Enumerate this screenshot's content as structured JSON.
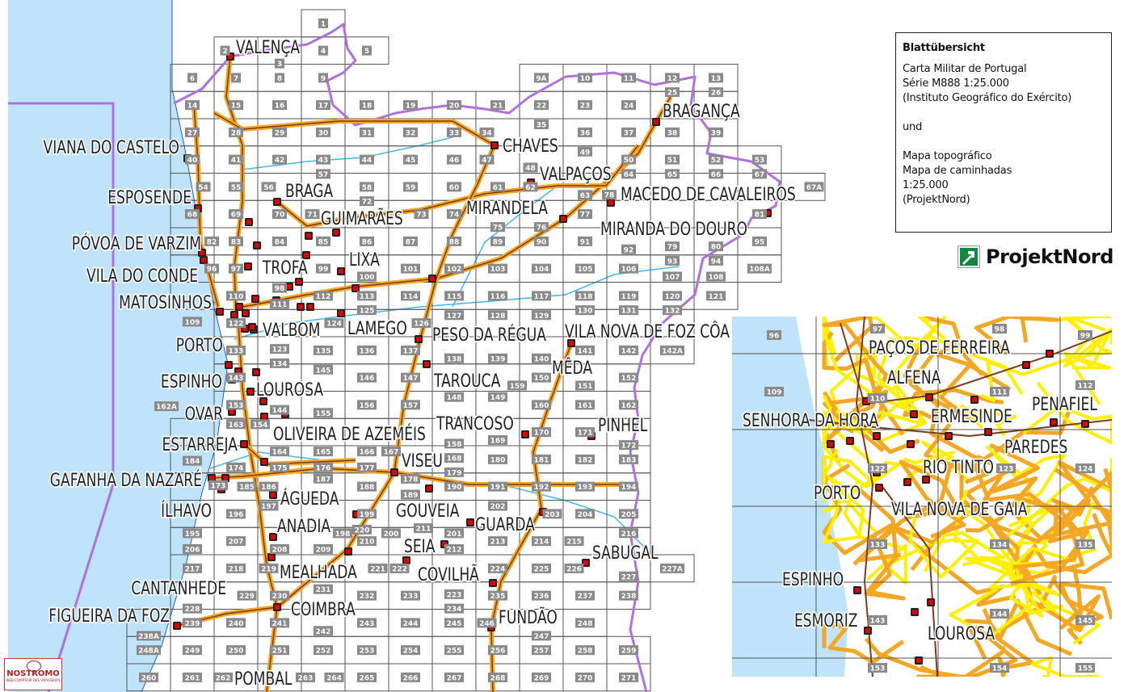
{
  "legend": {
    "title": "Blattübersicht",
    "lines_1": [
      "Carta Militar de Portugal",
      "Série M888 1:25.000",
      "(Instituto Geográfico do Exército)"
    ],
    "conjunction": "und",
    "lines_2": [
      "Mapa topográfico",
      "Mapa de caminhadas",
      "1:25.000",
      "(ProjektNord)"
    ]
  },
  "brand_logo": "ProjektNord",
  "corner_logo": {
    "name": "NOSTROMO",
    "tagline": "WEB-COMPTOIR DES VOYAGEURS"
  },
  "colors": {
    "sea": "#bfe3fb",
    "road_outer": "#f5a623",
    "road_inner": "#7a3b22",
    "local_road": "#ffef00",
    "border": "#b070e0",
    "river": "#3fb8ef",
    "tile_label_bg": "#8a8a8a",
    "grid": "#555555",
    "city_marker": "#e00000"
  },
  "sheet_rows": [
    [
      "1"
    ],
    [
      "2",
      "3",
      "4",
      "5"
    ],
    [
      "6",
      "7",
      "8",
      "9",
      null,
      null,
      null,
      null,
      "9A",
      "10",
      "11",
      "12",
      "13"
    ],
    [
      "14",
      "15",
      "16",
      "17",
      "18",
      "19",
      "20",
      "21",
      "22",
      "23",
      "24",
      "25",
      "26"
    ],
    [
      "27",
      "28",
      "29",
      "30",
      "31",
      "32",
      "33",
      "34",
      "35",
      "36",
      "37",
      "38",
      "39"
    ],
    [
      "40",
      "41",
      "42",
      "43",
      "44",
      "45",
      "46",
      "47",
      "48",
      "49",
      "50",
      "51",
      "52",
      "53"
    ],
    [
      "54",
      "55",
      "56",
      "57",
      "58",
      "59",
      "60",
      "61",
      "62",
      "63",
      "64",
      "65",
      "66",
      "67",
      "67A"
    ],
    [
      "68",
      "69",
      "70",
      "71",
      "72",
      "73",
      "74",
      "75",
      "76",
      "77",
      "78",
      "79",
      "80",
      "81"
    ],
    [
      "82",
      "83",
      "84",
      "85",
      "86",
      "87",
      "88",
      "89",
      "90",
      "91",
      "92",
      "93",
      "94",
      "95"
    ],
    [
      "96",
      "97",
      "98",
      "99",
      "100",
      "101",
      "102",
      "103",
      "104",
      "105",
      "106",
      "107",
      "108",
      "108A"
    ],
    [
      "109",
      "110",
      "111",
      "112",
      "113",
      "114",
      "115",
      "116",
      "117",
      "118",
      "119",
      "120",
      "121"
    ],
    [
      "122",
      "123",
      "124",
      "125",
      "126",
      "127",
      "128",
      "129",
      "130",
      "131",
      "132"
    ],
    [
      "133",
      "134",
      "135",
      "136",
      "137",
      "138",
      "139",
      "140",
      "141",
      "142",
      "142A"
    ],
    [
      "143",
      "144",
      "145",
      "146",
      "147",
      "148",
      "149",
      "150",
      "151",
      "152"
    ],
    [
      "153",
      "154",
      "155",
      "156",
      "157",
      "158",
      "159",
      "160",
      "161",
      "162"
    ],
    [
      "162A",
      "163",
      "164",
      "165",
      "166",
      "167",
      "168",
      "169",
      "170",
      "171",
      "172"
    ],
    [
      "173",
      "174",
      "175",
      "176",
      "177",
      "178",
      "179",
      "180",
      "181",
      "182",
      "183"
    ],
    [
      "184",
      "185",
      "186",
      "187",
      "188",
      "189",
      "190",
      "191",
      "192",
      "193",
      "194"
    ],
    [
      "195",
      "196",
      "197",
      "198",
      "199",
      "200",
      "201",
      "202",
      "203",
      "204",
      "205"
    ],
    [
      "206",
      "207",
      "208",
      "209",
      "210",
      "211",
      "212",
      "213",
      "214",
      "215",
      "216"
    ],
    [
      "217",
      "218",
      "219",
      "220",
      "221",
      "222",
      "223",
      "224",
      "225",
      "226",
      "227",
      "227A"
    ],
    [
      "228",
      "229",
      "230",
      "231",
      "232",
      "233",
      "234",
      "235",
      "236",
      "237",
      "238"
    ],
    [
      "238A",
      "239",
      "240",
      "241",
      "242",
      "243",
      "244",
      "245",
      "246",
      "247",
      "248"
    ],
    [
      "248A",
      "249",
      "250",
      "251",
      "252",
      "253",
      "254",
      "255",
      "256",
      "257",
      "258",
      "259"
    ],
    [
      "260",
      "261",
      "262",
      "263",
      "264",
      "265",
      "266",
      "267",
      "268",
      "269",
      "270",
      "271"
    ]
  ],
  "cities": [
    "VALENÇA",
    "VIANA DO CASTELO",
    "ESPOSENDE",
    "BRAGA",
    "GUIMARÃES",
    "CHAVES",
    "VALPAÇOS",
    "BRAGANÇA",
    "MIRANDELA",
    "MACEDO DE CAVALEIROS",
    "MIRANDA DO DOURO",
    "PÓVOA DE VARZIM",
    "TROFA",
    "LIXA",
    "VILA DO CONDE",
    "MATOSINHOS",
    "VALBOM",
    "LAMEGO",
    "PESO DA RÉGUA",
    "VILA NOVA DE FOZ CÔA",
    "PORTO",
    "MÊDA",
    "TAROUCA",
    "ESPINHO",
    "LOUROSA",
    "OVAR",
    "TRANCOSO",
    "PINHEL",
    "OLIVEIRA DE AZEMÉIS",
    "ESTARREJA",
    "VISEU",
    "GAFANHA DA NAZARÉ",
    "ÁGUEDA",
    "ÍLHAVO",
    "GOUVEIA",
    "GUARDA",
    "ANADIA",
    "SEIA",
    "SABUGAL",
    "MEALHADA",
    "COVILHÃ",
    "CANTANHEDE",
    "COIMBRA",
    "FIGUEIRA DA FOZ",
    "FUNDÃO",
    "POMBAL"
  ],
  "inset": {
    "sheets": [
      "96",
      "97",
      "98",
      "99",
      "109",
      "110",
      "111",
      "112",
      "122",
      "123",
      "124",
      "133",
      "134",
      "135",
      "143",
      "144",
      "145",
      "153",
      "154",
      "155"
    ],
    "cities": [
      "PAÇOS DE FERREIRA",
      "ALFENA",
      "SENHORA DA HORA",
      "ERMESINDE",
      "PENAFIEL",
      "PAREDES",
      "RIO TINTO",
      "PORTO",
      "VILA NOVA DE GAIA",
      "ESPINHO",
      "ESMORIZ",
      "LOUROSA"
    ]
  }
}
